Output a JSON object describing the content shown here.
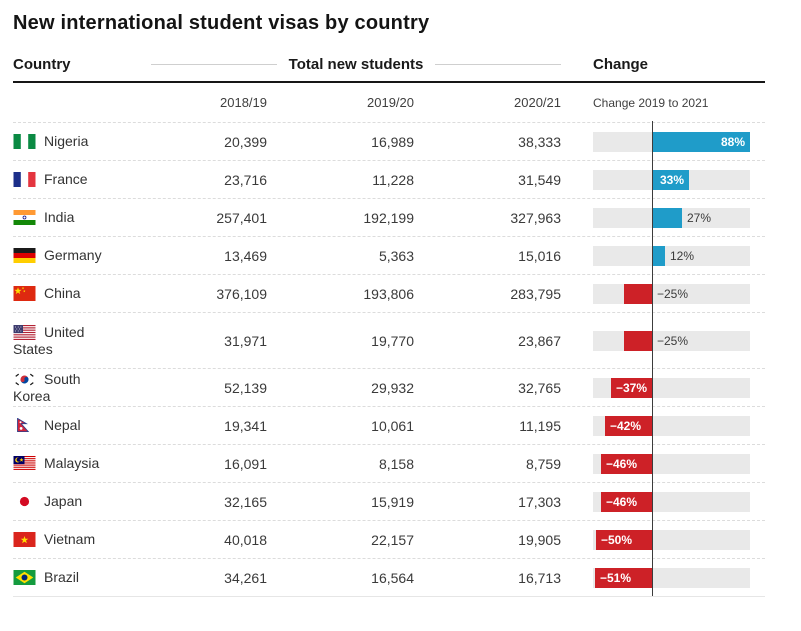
{
  "title": "New international student visas by country",
  "header": {
    "country_label": "Country",
    "group_label": "Total new students",
    "change_label": "Change"
  },
  "subheader": {
    "years": [
      "2018/19",
      "2019/20",
      "2020/21"
    ],
    "change_note": "Change 2019 to 2021"
  },
  "colors": {
    "positive": "#1f9cc9",
    "negative": "#cd2127",
    "track": "#e9e9e9",
    "axis": "#3c3c3c"
  },
  "rows": [
    {
      "country": "Nigeria",
      "flag": "nigeria",
      "values": [
        "20,399",
        "16,989",
        "38,333"
      ],
      "change_pct": 88,
      "change_label": "88%"
    },
    {
      "country": "France",
      "flag": "france",
      "values": [
        "23,716",
        "11,228",
        "31,549"
      ],
      "change_pct": 33,
      "change_label": "33%"
    },
    {
      "country": "India",
      "flag": "india",
      "values": [
        "257,401",
        "192,199",
        "327,963"
      ],
      "change_pct": 27,
      "change_label": "27%"
    },
    {
      "country": "Germany",
      "flag": "germany",
      "values": [
        "13,469",
        "5,363",
        "15,016"
      ],
      "change_pct": 12,
      "change_label": "12%"
    },
    {
      "country": "China",
      "flag": "china",
      "values": [
        "376,109",
        "193,806",
        "283,795"
      ],
      "change_pct": -25,
      "change_label": "−25%"
    },
    {
      "country": "United States",
      "flag": "united-states",
      "values": [
        "31,971",
        "19,770",
        "23,867"
      ],
      "change_pct": -25,
      "change_label": "−25%"
    },
    {
      "country": "South Korea",
      "flag": "south-korea",
      "values": [
        "52,139",
        "29,932",
        "32,765"
      ],
      "change_pct": -37,
      "change_label": "−37%"
    },
    {
      "country": "Nepal",
      "flag": "nepal",
      "values": [
        "19,341",
        "10,061",
        "11,195"
      ],
      "change_pct": -42,
      "change_label": "−42%"
    },
    {
      "country": "Malaysia",
      "flag": "malaysia",
      "values": [
        "16,091",
        "8,158",
        "8,759"
      ],
      "change_pct": -46,
      "change_label": "−46%"
    },
    {
      "country": "Japan",
      "flag": "japan",
      "values": [
        "32,165",
        "15,919",
        "17,303"
      ],
      "change_pct": -46,
      "change_label": "−46%"
    },
    {
      "country": "Vietnam",
      "flag": "vietnam",
      "values": [
        "40,018",
        "22,157",
        "19,905"
      ],
      "change_pct": -50,
      "change_label": "−50%"
    },
    {
      "country": "Brazil",
      "flag": "brazil",
      "values": [
        "34,261",
        "16,564",
        "16,713"
      ],
      "change_pct": -51,
      "change_label": "−51%"
    }
  ],
  "chart_data": {
    "type": "table",
    "title": "New international student visas by country",
    "columns": [
      "Country",
      "2018/19",
      "2019/20",
      "2020/21",
      "Change 2019 to 2021 (%)"
    ],
    "rows": [
      [
        "Nigeria",
        20399,
        16989,
        38333,
        88
      ],
      [
        "France",
        23716,
        11228,
        31549,
        33
      ],
      [
        "India",
        257401,
        192199,
        327963,
        27
      ],
      [
        "Germany",
        13469,
        5363,
        15016,
        12
      ],
      [
        "China",
        376109,
        193806,
        283795,
        -25
      ],
      [
        "United States",
        31971,
        19770,
        23867,
        -25
      ],
      [
        "South Korea",
        52139,
        29932,
        32765,
        -37
      ],
      [
        "Nepal",
        19341,
        10061,
        11195,
        -42
      ],
      [
        "Malaysia",
        16091,
        8158,
        8759,
        -46
      ],
      [
        "Japan",
        32165,
        15919,
        17303,
        -46
      ],
      [
        "Vietnam",
        40018,
        22157,
        19905,
        -50
      ],
      [
        "Brazil",
        34261,
        16564,
        16713,
        -51
      ]
    ],
    "embedded_chart": {
      "type": "bar",
      "orientation": "horizontal",
      "value_column": "Change 2019 to 2021 (%)",
      "axis_range_pct": [
        -53,
        88
      ],
      "positive_color": "#1f9cc9",
      "negative_color": "#cd2127",
      "zero_line": true
    }
  }
}
